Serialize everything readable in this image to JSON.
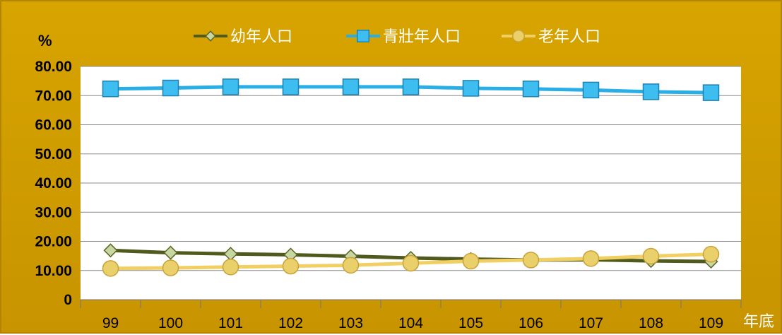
{
  "chart_data": {
    "type": "line",
    "title": "",
    "ylabel": "%",
    "xlabel": "年底",
    "ylim": [
      0,
      80
    ],
    "yticks": [
      "0",
      "10.00",
      "20.00",
      "30.00",
      "40.00",
      "50.00",
      "60.00",
      "70.00",
      "80.00"
    ],
    "ytick_values": [
      0,
      10,
      20,
      30,
      40,
      50,
      60,
      70,
      80
    ],
    "categories": [
      "99",
      "100",
      "101",
      "102",
      "103",
      "104",
      "105",
      "106",
      "107",
      "108",
      "109"
    ],
    "grid": true,
    "legend_position": "top",
    "series": [
      {
        "name": "幼年人口",
        "marker": "diamond",
        "line_color": "#4f5a1c",
        "marker_color": "#c8d7a2",
        "values": [
          16.9,
          16.1,
          15.7,
          15.4,
          14.9,
          14.3,
          13.9,
          13.6,
          13.7,
          13.3,
          13.1
        ]
      },
      {
        "name": "青壯年人口",
        "marker": "square",
        "line_color": "#29aee6",
        "marker_color": "#3dbdf0",
        "values": [
          72.3,
          72.6,
          73.0,
          73.0,
          73.0,
          73.0,
          72.5,
          72.3,
          71.9,
          71.3,
          71.0
        ]
      },
      {
        "name": "老年人口",
        "marker": "circle",
        "line_color": "#f2cf62",
        "marker_color": "#ead06a",
        "values": [
          10.7,
          10.9,
          11.2,
          11.5,
          11.8,
          12.5,
          13.2,
          13.6,
          14.1,
          14.9,
          15.6
        ]
      }
    ]
  }
}
